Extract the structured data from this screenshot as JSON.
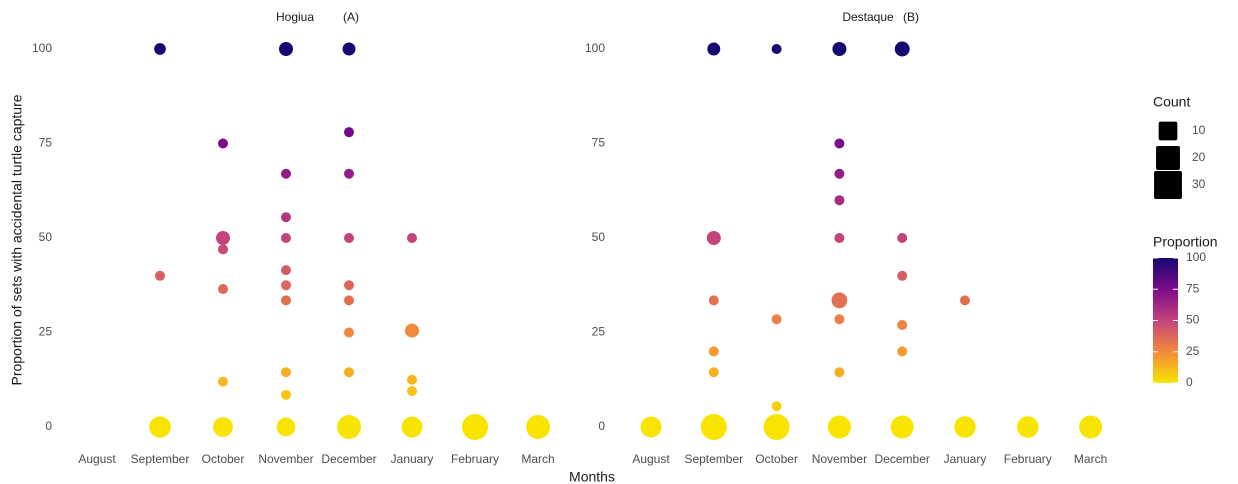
{
  "chart_data": [
    {
      "type": "scatter",
      "title": "Hogiua",
      "subtitle": "(A)",
      "categories": [
        "August",
        "September",
        "October",
        "November",
        "December",
        "January",
        "February",
        "March"
      ],
      "x": [
        "September",
        "September",
        "September",
        "October",
        "October",
        "October",
        "October",
        "October",
        "October",
        "November",
        "November",
        "November",
        "November",
        "November",
        "November",
        "November",
        "November",
        "November",
        "November",
        "December",
        "December",
        "December",
        "December",
        "December",
        "December",
        "December",
        "December",
        "December",
        "January",
        "January",
        "January",
        "January",
        "January",
        "February",
        "March"
      ],
      "values": [
        100,
        40,
        0,
        75,
        50,
        47,
        36.5,
        12,
        0,
        100,
        67,
        55.5,
        50,
        41.5,
        37.5,
        33.5,
        14.5,
        8.5,
        0,
        100,
        78,
        67,
        50,
        37.5,
        33.5,
        25,
        14.5,
        0,
        50,
        25.5,
        12.5,
        9.5,
        0,
        0,
        0
      ],
      "sizes": [
        2,
        1,
        15,
        1,
        4,
        1,
        1,
        1,
        12,
        4,
        1,
        1,
        1,
        1,
        1,
        1,
        1,
        1,
        10,
        3,
        1,
        1,
        1,
        1,
        1,
        1,
        1,
        20,
        1,
        4,
        1,
        1,
        14,
        25,
        20
      ],
      "ylim": [
        0,
        100
      ],
      "yticks": [
        0,
        25,
        50,
        75,
        100
      ]
    },
    {
      "type": "scatter",
      "title": "Destaque",
      "subtitle": "(B)",
      "categories": [
        "August",
        "September",
        "October",
        "November",
        "December",
        "January",
        "February",
        "March"
      ],
      "x": [
        "August",
        "September",
        "September",
        "September",
        "September",
        "September",
        "September",
        "October",
        "October",
        "October",
        "October",
        "November",
        "November",
        "November",
        "November",
        "November",
        "November",
        "November",
        "November",
        "November",
        "December",
        "December",
        "December",
        "December",
        "December",
        "December",
        "January",
        "January",
        "February",
        "March"
      ],
      "values": [
        0,
        100,
        50,
        33.5,
        20,
        14.5,
        0,
        100,
        28.5,
        5.5,
        0,
        100,
        75,
        67,
        60,
        50,
        33.5,
        28.5,
        14.5,
        0,
        100,
        50,
        40,
        27,
        20,
        0,
        33.5,
        0,
        0,
        0
      ],
      "sizes": [
        14,
        3,
        4,
        1,
        1,
        1,
        25,
        1,
        1,
        1,
        25,
        4,
        1,
        1,
        1,
        1,
        6,
        1,
        1,
        18,
        5,
        1,
        1,
        1,
        1,
        18,
        1,
        15,
        15,
        18
      ],
      "ylim": [
        0,
        100
      ],
      "yticks": [
        0,
        25,
        50,
        75,
        100
      ]
    }
  ],
  "xlabel": "Months",
  "ylabel": "Proportion of sets with accidental turtle capture",
  "size_legend": {
    "title": "Count",
    "ticks": [
      10,
      20,
      30
    ],
    "color": "#000000"
  },
  "color_legend": {
    "title": "Proportion",
    "ticks": [
      0,
      25,
      50,
      75,
      100
    ],
    "lim": [
      0,
      100
    ],
    "colorscale": [
      [
        0,
        "#f9e400"
      ],
      [
        25,
        "#f3893b"
      ],
      [
        50,
        "#c3437b"
      ],
      [
        75,
        "#7c0b8c"
      ],
      [
        100,
        "#150872"
      ]
    ]
  }
}
